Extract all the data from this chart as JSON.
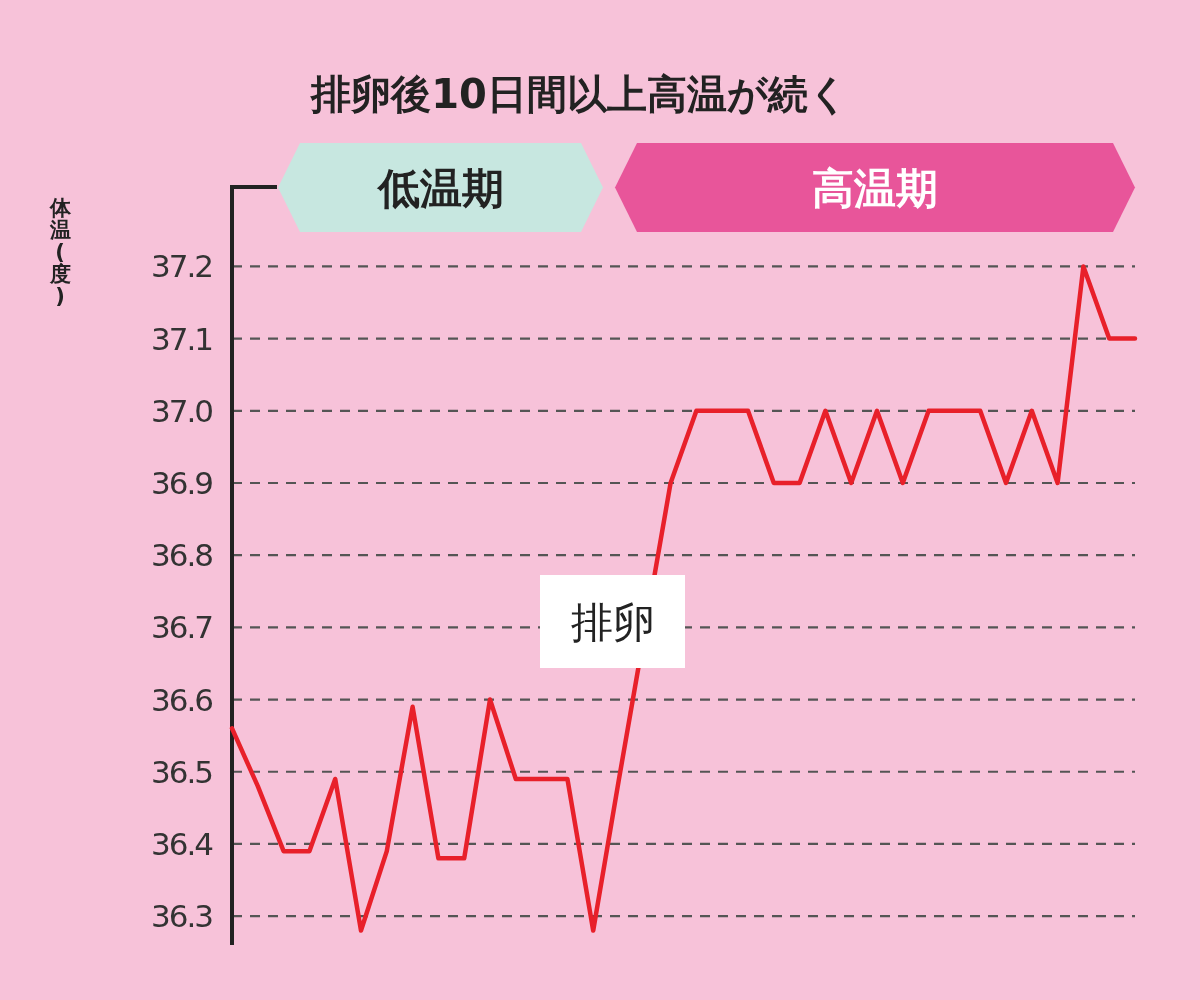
{
  "chart_data": {
    "type": "line",
    "title": "排卵後10日間以上高温が続く",
    "ylabel": "体温(度)",
    "categories": [
      null,
      null,
      null,
      null,
      null,
      null,
      null,
      null,
      null,
      null,
      null,
      null,
      null,
      null,
      null,
      null,
      null,
      null,
      null,
      null,
      null,
      null,
      null,
      null,
      null,
      null,
      null,
      null,
      null,
      null,
      null,
      null,
      null,
      null,
      null,
      null
    ],
    "series": [
      {
        "color": "#e8202a",
        "values": [
          36.56,
          36.48,
          36.39,
          36.39,
          36.49,
          36.28,
          36.39,
          36.59,
          36.38,
          36.38,
          36.6,
          36.49,
          36.49,
          36.49,
          36.28,
          36.49,
          null,
          36.9,
          37.0,
          37.0,
          37.0,
          36.9,
          36.9,
          37.0,
          36.9,
          37.0,
          36.9,
          37.0,
          37.0,
          37.0,
          36.9,
          37.0,
          36.9,
          37.2,
          37.1,
          37.1
        ]
      }
    ],
    "ylim": [
      36.26,
      37.31
    ],
    "yticks": [
      36.3,
      36.4,
      36.5,
      36.6,
      36.7,
      36.8,
      36.9,
      {
        "value": 37.0,
        "label": "37.0"
      },
      37.1,
      37.2
    ],
    "grid": "y",
    "line_style": "solid",
    "tick_labels": "y",
    "annotations": [
      "低温期",
      "高温期",
      "排卵"
    ]
  }
}
